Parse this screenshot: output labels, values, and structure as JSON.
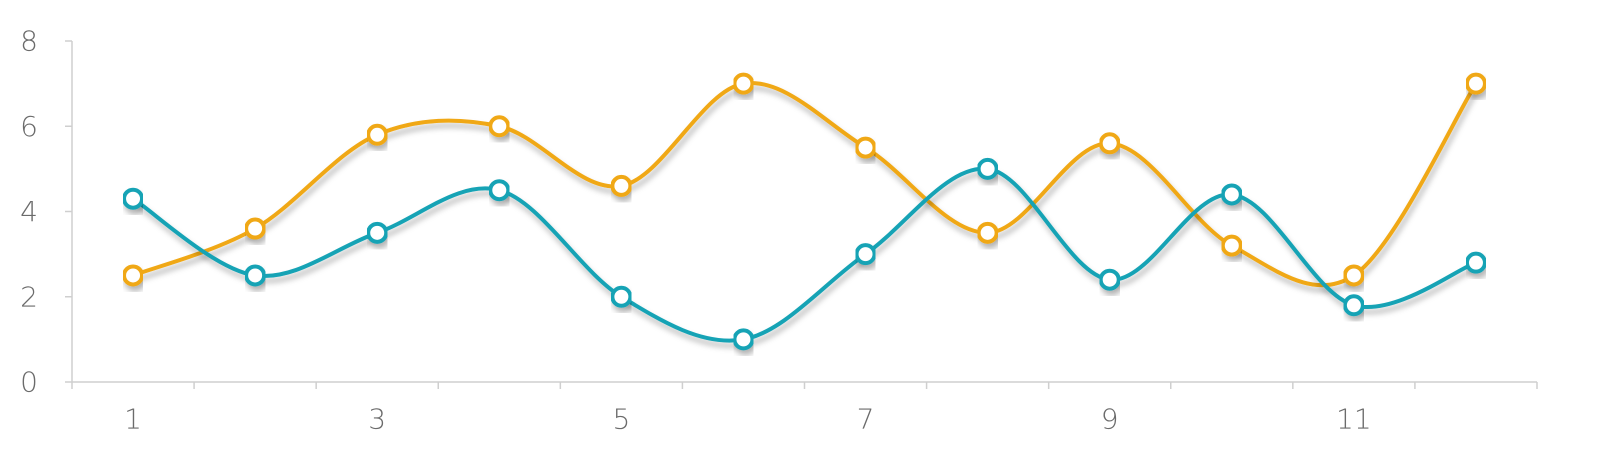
{
  "chart_data": {
    "type": "line",
    "smooth": true,
    "markers": "hollow-circle",
    "title": "",
    "xlabel": "",
    "ylabel": "",
    "x": [
      1,
      2,
      3,
      4,
      5,
      6,
      7,
      8,
      9,
      10,
      11,
      12
    ],
    "x_tick_labels": [
      "1",
      "3",
      "5",
      "7",
      "9",
      "11"
    ],
    "x_tick_values": [
      1,
      3,
      5,
      7,
      9,
      11
    ],
    "xlim": [
      0.5,
      12.5
    ],
    "y_tick_labels": [
      "0",
      "2",
      "4",
      "6",
      "8"
    ],
    "y_tick_values": [
      0,
      2,
      4,
      6,
      8
    ],
    "ylim": [
      0,
      8
    ],
    "grid": false,
    "legend": "none",
    "series": [
      {
        "color": "#f0a814",
        "values": [
          2.5,
          3.6,
          5.8,
          6.0,
          4.6,
          7.0,
          5.5,
          3.5,
          5.6,
          3.2,
          2.5,
          7.0
        ]
      },
      {
        "color": "#17a3b5",
        "values": [
          4.3,
          2.5,
          3.5,
          4.5,
          2.0,
          1.0,
          3.0,
          5.0,
          2.4,
          4.4,
          1.8,
          2.8
        ]
      }
    ]
  }
}
